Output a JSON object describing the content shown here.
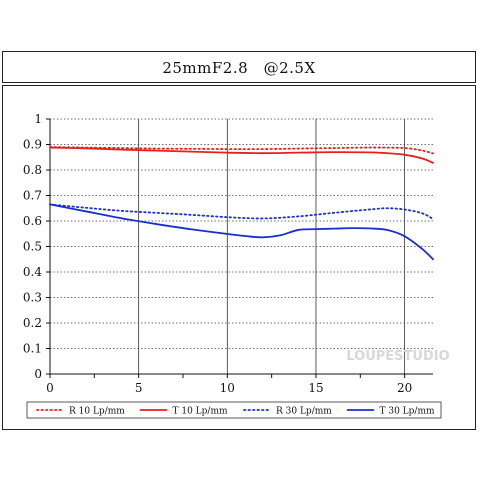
{
  "chart_data": {
    "type": "line",
    "title": "25mmF2.8　@2.5X",
    "xlabel": "",
    "ylabel": "",
    "xlim": [
      0,
      21.6
    ],
    "ylim": [
      0,
      1
    ],
    "x_ticks": [
      0,
      5,
      10,
      15,
      20
    ],
    "y_ticks": [
      0,
      0.1,
      0.2,
      0.3,
      0.4,
      0.5,
      0.6,
      0.7,
      0.8,
      0.9,
      1
    ],
    "grid": true,
    "legend_position": "bottom",
    "watermark": "LOUPESTUDIO",
    "series": [
      {
        "name": "R 10 Lp/mm",
        "color": "#e8201a",
        "style": "dotted",
        "x": [
          0,
          2,
          4,
          6,
          8,
          10,
          12,
          14,
          16,
          18,
          20,
          21,
          21.6
        ],
        "y": [
          0.89,
          0.888,
          0.886,
          0.884,
          0.883,
          0.882,
          0.882,
          0.884,
          0.886,
          0.888,
          0.886,
          0.876,
          0.865
        ]
      },
      {
        "name": "T 10 Lp/mm",
        "color": "#e8201a",
        "style": "solid",
        "x": [
          0,
          2,
          4,
          6,
          8,
          10,
          12,
          14,
          16,
          18,
          19,
          20,
          21,
          21.6
        ],
        "y": [
          0.888,
          0.885,
          0.88,
          0.876,
          0.872,
          0.868,
          0.866,
          0.868,
          0.87,
          0.869,
          0.866,
          0.86,
          0.845,
          0.828
        ]
      },
      {
        "name": "R 30 Lp/mm",
        "color": "#1a2fd0",
        "style": "dotted",
        "x": [
          0,
          2,
          4,
          6,
          8,
          10,
          12,
          14,
          16,
          18,
          19,
          20,
          21,
          21.6
        ],
        "y": [
          0.665,
          0.652,
          0.64,
          0.632,
          0.624,
          0.615,
          0.61,
          0.618,
          0.632,
          0.645,
          0.65,
          0.645,
          0.63,
          0.608
        ]
      },
      {
        "name": "T 30 Lp/mm",
        "color": "#1a2fd0",
        "style": "solid",
        "x": [
          0,
          2,
          4,
          6,
          8,
          10,
          11,
          12,
          13,
          14,
          15,
          16,
          17,
          18,
          19,
          20,
          21,
          21.6
        ],
        "y": [
          0.665,
          0.638,
          0.611,
          0.588,
          0.567,
          0.549,
          0.541,
          0.536,
          0.544,
          0.565,
          0.568,
          0.57,
          0.572,
          0.571,
          0.565,
          0.54,
          0.49,
          0.45
        ]
      }
    ]
  }
}
